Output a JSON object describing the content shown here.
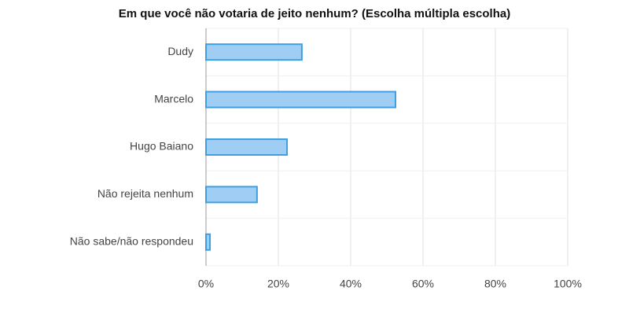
{
  "chart_data": {
    "type": "bar",
    "orientation": "horizontal",
    "title": "Em que você não votaria de jeito nenhum? (Escolha múltipla escolha)",
    "categories": [
      "Dudy",
      "Marcelo",
      "Hugo Baiano",
      "Não rejeita nenhum",
      "Não sabe/não respondeu"
    ],
    "values": [
      26.5,
      52.4,
      22.4,
      14.1,
      1.1
    ],
    "color": "#9fcdf3",
    "edge_color": "#3ea0e0",
    "xlim": [
      0,
      100
    ],
    "xticks": [
      {
        "value": 0,
        "label": "0%"
      },
      {
        "value": 20,
        "label": "20%"
      },
      {
        "value": 40,
        "label": "40%"
      },
      {
        "value": 60,
        "label": "60%"
      },
      {
        "value": 80,
        "label": "80%"
      },
      {
        "value": 100,
        "label": "100%"
      }
    ],
    "grid": true
  }
}
